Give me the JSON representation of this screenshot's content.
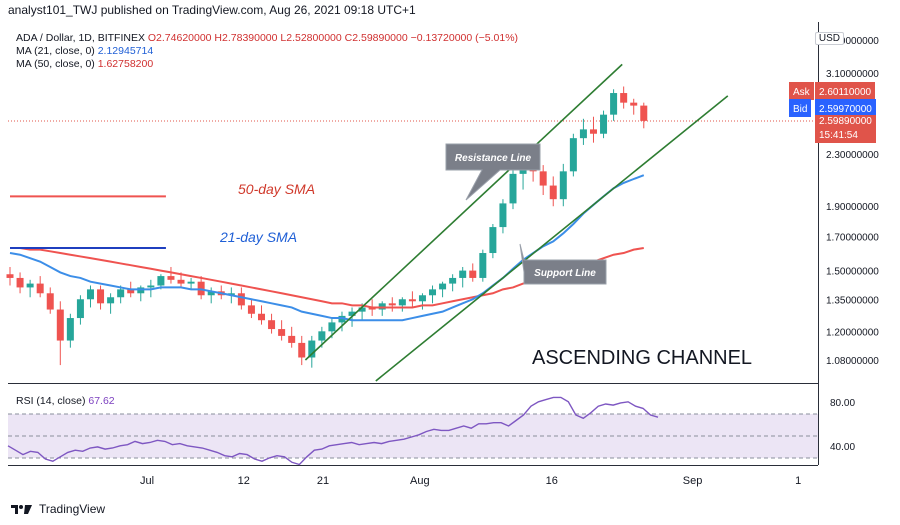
{
  "header": {
    "publisher": "analyst101_TWJ published on TradingView.com, Aug 26, 2021 09:18 UTC+1"
  },
  "legend": {
    "symbol": "ADA / Dollar, 1D, BITFINEX",
    "ohlc": "O2.74620000 H2.78390000 L2.52800000 C2.59890000 −0.13720000 (−5.01%)",
    "ma21_label": "MA (21, close, 0)",
    "ma21_value": "2.12945714",
    "ma50_label": "MA (50, close, 0)",
    "ma50_value": "1.62758200"
  },
  "currency": "USD",
  "price_tags": {
    "ask_label": "Ask",
    "ask_value": "2.60110000",
    "bid_label": "Bid",
    "bid_value": "2.59970000",
    "last_value": "2.59890000",
    "countdown": "15:41:54"
  },
  "annotations": {
    "sma50": "50-day SMA",
    "sma21": "21-day SMA",
    "resistance": "Resistance Line",
    "support": "Support Line",
    "pattern": "ASCENDING CHANNEL"
  },
  "rsi": {
    "label": "RSI (14, close)",
    "value": "67.62",
    "ticks": [
      "80.00",
      "40.00"
    ],
    "values": [
      42,
      38,
      34,
      37,
      36,
      30,
      28,
      32,
      36,
      38,
      37,
      40,
      41,
      39,
      40,
      42,
      43,
      46,
      44,
      45,
      47,
      46,
      43,
      44,
      42,
      41,
      40,
      38,
      36,
      33,
      32,
      35,
      34,
      30,
      28,
      31,
      33,
      32,
      27,
      25,
      32,
      38,
      39,
      42,
      43,
      44,
      45,
      43,
      44,
      45,
      44,
      46,
      47,
      48,
      50,
      52,
      55,
      57,
      56,
      56,
      58,
      60,
      58,
      62,
      62,
      63,
      63,
      60,
      65,
      70,
      78,
      82,
      84,
      86,
      86,
      82,
      70,
      67,
      72,
      78,
      80,
      79,
      81,
      82,
      78,
      76,
      70,
      68
    ]
  },
  "footer": {
    "brand": "TradingView"
  },
  "chart_data": {
    "type": "candlestick",
    "title": "ADA / Dollar, 1D, BITFINEX",
    "y_axis_ticks": [
      "3.50000000",
      "3.10000000",
      "2.30000000",
      "1.90000000",
      "1.70000000",
      "1.50000000",
      "1.35000000",
      "1.20000000",
      "1.08000000"
    ],
    "y_axis_tick_values": [
      3.5,
      3.1,
      2.3,
      1.9,
      1.7,
      1.5,
      1.35,
      1.2,
      1.08
    ],
    "y_scale": "log",
    "x_axis_ticks": [
      "Jul",
      "12",
      "21",
      "Aug",
      "16",
      "Sep",
      "1"
    ],
    "x_axis_tick_dates": [
      "2021-07-01",
      "2021-07-12",
      "2021-07-21",
      "2021-08-01",
      "2021-08-16",
      "2021-09-01",
      "2021-09-13"
    ],
    "candles": [
      [
        1.48,
        1.52,
        1.42,
        1.46
      ],
      [
        1.46,
        1.49,
        1.38,
        1.41
      ],
      [
        1.41,
        1.45,
        1.36,
        1.43
      ],
      [
        1.43,
        1.47,
        1.36,
        1.38
      ],
      [
        1.38,
        1.41,
        1.28,
        1.3
      ],
      [
        1.3,
        1.34,
        1.06,
        1.16
      ],
      [
        1.16,
        1.28,
        1.13,
        1.26
      ],
      [
        1.26,
        1.37,
        1.23,
        1.35
      ],
      [
        1.35,
        1.42,
        1.31,
        1.4
      ],
      [
        1.4,
        1.42,
        1.3,
        1.33
      ],
      [
        1.33,
        1.38,
        1.28,
        1.36
      ],
      [
        1.36,
        1.42,
        1.33,
        1.4
      ],
      [
        1.4,
        1.44,
        1.36,
        1.38
      ],
      [
        1.38,
        1.42,
        1.34,
        1.41
      ],
      [
        1.41,
        1.45,
        1.36,
        1.42
      ],
      [
        1.42,
        1.48,
        1.4,
        1.47
      ],
      [
        1.47,
        1.52,
        1.43,
        1.45
      ],
      [
        1.45,
        1.49,
        1.41,
        1.43
      ],
      [
        1.43,
        1.46,
        1.4,
        1.44
      ],
      [
        1.44,
        1.47,
        1.35,
        1.37
      ],
      [
        1.37,
        1.41,
        1.33,
        1.39
      ],
      [
        1.39,
        1.42,
        1.35,
        1.37
      ],
      [
        1.37,
        1.41,
        1.33,
        1.38
      ],
      [
        1.38,
        1.41,
        1.3,
        1.32
      ],
      [
        1.32,
        1.35,
        1.26,
        1.28
      ],
      [
        1.28,
        1.32,
        1.23,
        1.25
      ],
      [
        1.25,
        1.28,
        1.19,
        1.21
      ],
      [
        1.21,
        1.25,
        1.16,
        1.18
      ],
      [
        1.18,
        1.22,
        1.13,
        1.15
      ],
      [
        1.15,
        1.18,
        1.06,
        1.09
      ],
      [
        1.09,
        1.18,
        1.05,
        1.16
      ],
      [
        1.16,
        1.22,
        1.13,
        1.2
      ],
      [
        1.2,
        1.26,
        1.17,
        1.24
      ],
      [
        1.24,
        1.29,
        1.2,
        1.27
      ],
      [
        1.27,
        1.31,
        1.22,
        1.29
      ],
      [
        1.29,
        1.33,
        1.25,
        1.31
      ],
      [
        1.31,
        1.35,
        1.27,
        1.3
      ],
      [
        1.3,
        1.34,
        1.27,
        1.33
      ],
      [
        1.33,
        1.36,
        1.29,
        1.32
      ],
      [
        1.32,
        1.36,
        1.29,
        1.35
      ],
      [
        1.35,
        1.39,
        1.31,
        1.34
      ],
      [
        1.34,
        1.38,
        1.3,
        1.37
      ],
      [
        1.37,
        1.42,
        1.33,
        1.4
      ],
      [
        1.4,
        1.44,
        1.36,
        1.43
      ],
      [
        1.43,
        1.48,
        1.39,
        1.46
      ],
      [
        1.46,
        1.52,
        1.41,
        1.5
      ],
      [
        1.5,
        1.54,
        1.44,
        1.46
      ],
      [
        1.46,
        1.62,
        1.44,
        1.6
      ],
      [
        1.6,
        1.78,
        1.57,
        1.76
      ],
      [
        1.76,
        1.95,
        1.72,
        1.92
      ],
      [
        1.92,
        2.18,
        1.88,
        2.14
      ],
      [
        2.14,
        2.22,
        2.02,
        2.18
      ],
      [
        2.18,
        2.25,
        2.08,
        2.16
      ],
      [
        2.16,
        2.21,
        1.98,
        2.05
      ],
      [
        2.05,
        2.12,
        1.9,
        1.95
      ],
      [
        1.95,
        2.22,
        1.9,
        2.16
      ],
      [
        2.16,
        2.48,
        2.12,
        2.44
      ],
      [
        2.44,
        2.62,
        2.38,
        2.52
      ],
      [
        2.52,
        2.64,
        2.4,
        2.48
      ],
      [
        2.48,
        2.7,
        2.44,
        2.66
      ],
      [
        2.66,
        2.92,
        2.6,
        2.88
      ],
      [
        2.88,
        2.95,
        2.72,
        2.78
      ],
      [
        2.78,
        2.82,
        2.66,
        2.75
      ],
      [
        2.75,
        2.78,
        2.53,
        2.6
      ]
    ],
    "series": [
      {
        "name": "MA (21, close, 0)",
        "last_value": 2.12945714
      },
      {
        "name": "MA (50, close, 0)",
        "last_value": 1.627582
      }
    ],
    "ma21_values": [
      1.6,
      1.59,
      1.57,
      1.55,
      1.52,
      1.49,
      1.47,
      1.46,
      1.44,
      1.43,
      1.42,
      1.41,
      1.4,
      1.4,
      1.4,
      1.41,
      1.41,
      1.41,
      1.4,
      1.4,
      1.39,
      1.38,
      1.37,
      1.36,
      1.35,
      1.34,
      1.33,
      1.32,
      1.31,
      1.29,
      1.28,
      1.27,
      1.26,
      1.26,
      1.25,
      1.25,
      1.25,
      1.25,
      1.25,
      1.25,
      1.26,
      1.27,
      1.28,
      1.29,
      1.31,
      1.33,
      1.35,
      1.38,
      1.42,
      1.46,
      1.51,
      1.56,
      1.6,
      1.64,
      1.67,
      1.72,
      1.78,
      1.85,
      1.91,
      1.97,
      2.03,
      2.07,
      2.1,
      2.13
    ],
    "ma50_values": [
      1.63,
      1.63,
      1.62,
      1.62,
      1.61,
      1.6,
      1.59,
      1.58,
      1.57,
      1.56,
      1.55,
      1.54,
      1.53,
      1.52,
      1.51,
      1.5,
      1.49,
      1.48,
      1.47,
      1.46,
      1.45,
      1.44,
      1.43,
      1.42,
      1.41,
      1.4,
      1.39,
      1.38,
      1.37,
      1.36,
      1.35,
      1.34,
      1.33,
      1.33,
      1.32,
      1.32,
      1.31,
      1.31,
      1.31,
      1.31,
      1.31,
      1.32,
      1.32,
      1.33,
      1.34,
      1.35,
      1.36,
      1.37,
      1.38,
      1.4,
      1.41,
      1.43,
      1.44,
      1.46,
      1.47,
      1.49,
      1.51,
      1.53,
      1.55,
      1.57,
      1.59,
      1.6,
      1.62,
      1.63
    ],
    "channel": {
      "resistance": [
        {
          "date": "2021-07-19",
          "price": 1.08
        },
        {
          "date": "2021-08-24",
          "price": 3.2
        }
      ],
      "support": [
        {
          "date": "2021-07-27",
          "price": 1.0
        },
        {
          "date": "2021-09-05",
          "price": 2.85
        }
      ]
    },
    "ma_legend_lines": {
      "ma50_level": 1.97,
      "ma21_level": 1.63
    }
  }
}
